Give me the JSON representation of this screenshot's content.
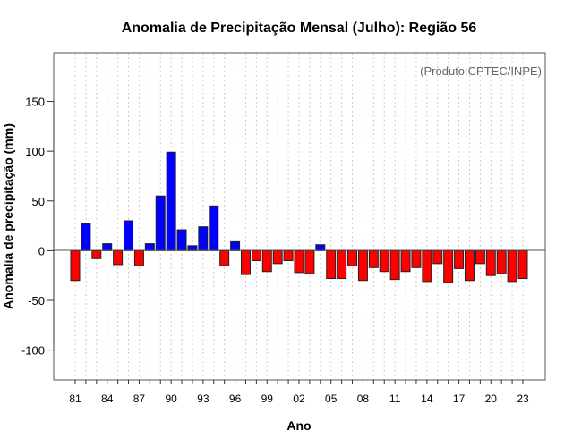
{
  "chart_data": {
    "type": "bar",
    "title": "Anomalia de Precipitação Mensal (Julho): Região 56",
    "xlabel": "Ano",
    "ylabel": "Anomalia de precipitação (mm)",
    "annotation": "(Produto:CPTEC/INPE)",
    "ylim": [
      -130,
      199
    ],
    "yticks": [
      -100,
      -50,
      0,
      50,
      100,
      150
    ],
    "categories": [
      "81",
      "82",
      "83",
      "84",
      "85",
      "86",
      "87",
      "88",
      "89",
      "90",
      "91",
      "92",
      "93",
      "94",
      "95",
      "96",
      "97",
      "98",
      "99",
      "00",
      "01",
      "02",
      "03",
      "04",
      "05",
      "06",
      "07",
      "08",
      "09",
      "10",
      "11",
      "12",
      "13",
      "14",
      "15",
      "16",
      "17",
      "18",
      "19",
      "20",
      "21",
      "22",
      "23"
    ],
    "xtick_labels": [
      "81",
      "84",
      "87",
      "90",
      "93",
      "96",
      "99",
      "02",
      "05",
      "08",
      "11",
      "14",
      "17",
      "20",
      "23"
    ],
    "values": [
      -30,
      27,
      -8,
      7,
      -14,
      30,
      -15,
      7,
      55,
      99,
      21,
      5,
      24,
      45,
      -15,
      9,
      -24,
      -10,
      -21,
      -13,
      -10,
      -22,
      -23,
      6,
      -28,
      -28,
      -15,
      -30,
      -17,
      -21,
      -29,
      -21,
      -17,
      -31,
      -13,
      -32,
      -18,
      -30,
      -13,
      -25,
      -23,
      -31,
      -28
    ],
    "positive_color": "#0000ff",
    "negative_color": "#ff0000",
    "grid": "vertical dotted"
  }
}
